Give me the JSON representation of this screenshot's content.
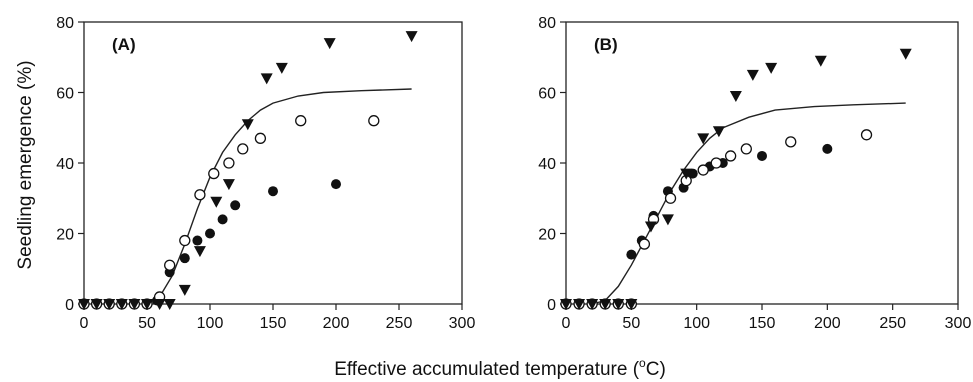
{
  "chart_data": [
    {
      "type": "scatter",
      "panel_label": "(A)",
      "xlim": [
        0,
        300
      ],
      "ylim": [
        0,
        80
      ],
      "xticks": [
        0,
        50,
        100,
        150,
        200,
        250,
        300
      ],
      "yticks": [
        0,
        20,
        40,
        60,
        80
      ],
      "ylabel": "Seedling emergence (%)",
      "grid": false,
      "legend": "none",
      "series": [
        {
          "marker": "filled-circle",
          "points": [
            [
              0,
              0
            ],
            [
              10,
              0
            ],
            [
              20,
              0
            ],
            [
              30,
              0
            ],
            [
              40,
              0
            ],
            [
              50,
              0
            ],
            [
              58,
              1
            ],
            [
              68,
              9
            ],
            [
              80,
              13
            ],
            [
              90,
              18
            ],
            [
              100,
              20
            ],
            [
              110,
              24
            ],
            [
              120,
              28
            ],
            [
              150,
              32
            ],
            [
              200,
              34
            ]
          ]
        },
        {
          "marker": "open-circle",
          "points": [
            [
              0,
              0
            ],
            [
              10,
              0
            ],
            [
              20,
              0
            ],
            [
              30,
              0
            ],
            [
              40,
              0
            ],
            [
              50,
              0
            ],
            [
              60,
              2
            ],
            [
              68,
              11
            ],
            [
              80,
              18
            ],
            [
              92,
              31
            ],
            [
              103,
              37
            ],
            [
              115,
              40
            ],
            [
              126,
              44
            ],
            [
              140,
              47
            ],
            [
              172,
              52
            ],
            [
              230,
              52
            ]
          ]
        },
        {
          "marker": "filled-triangle-down",
          "points": [
            [
              0,
              0
            ],
            [
              10,
              0
            ],
            [
              20,
              0
            ],
            [
              30,
              0
            ],
            [
              40,
              0
            ],
            [
              50,
              0
            ],
            [
              60,
              0
            ],
            [
              68,
              0
            ],
            [
              80,
              4
            ],
            [
              92,
              15
            ],
            [
              105,
              29
            ],
            [
              115,
              34
            ],
            [
              130,
              51
            ],
            [
              145,
              64
            ],
            [
              157,
              67
            ],
            [
              195,
              74
            ],
            [
              260,
              76
            ]
          ]
        }
      ],
      "fitted_curve": [
        [
          50,
          0
        ],
        [
          60,
          2
        ],
        [
          70,
          8
        ],
        [
          80,
          17
        ],
        [
          90,
          27
        ],
        [
          100,
          36
        ],
        [
          110,
          43
        ],
        [
          120,
          48
        ],
        [
          130,
          52
        ],
        [
          140,
          55
        ],
        [
          150,
          57
        ],
        [
          170,
          59
        ],
        [
          190,
          60
        ],
        [
          220,
          60.5
        ],
        [
          260,
          61
        ]
      ]
    },
    {
      "type": "scatter",
      "panel_label": "(B)",
      "xlim": [
        0,
        300
      ],
      "ylim": [
        0,
        80
      ],
      "xticks": [
        0,
        50,
        100,
        150,
        200,
        250,
        300
      ],
      "yticks": [
        0,
        20,
        40,
        60,
        80
      ],
      "grid": false,
      "legend": "none",
      "series": [
        {
          "marker": "filled-circle",
          "points": [
            [
              0,
              0
            ],
            [
              10,
              0
            ],
            [
              20,
              0
            ],
            [
              30,
              0
            ],
            [
              40,
              0
            ],
            [
              50,
              14
            ],
            [
              58,
              18
            ],
            [
              67,
              25
            ],
            [
              78,
              32
            ],
            [
              90,
              33
            ],
            [
              97,
              37
            ],
            [
              110,
              39
            ],
            [
              120,
              40
            ],
            [
              150,
              42
            ],
            [
              200,
              44
            ]
          ]
        },
        {
          "marker": "open-circle",
          "points": [
            [
              0,
              0
            ],
            [
              10,
              0
            ],
            [
              20,
              0
            ],
            [
              30,
              0
            ],
            [
              40,
              0
            ],
            [
              50,
              0
            ],
            [
              60,
              17
            ],
            [
              67,
              24
            ],
            [
              80,
              30
            ],
            [
              92,
              35
            ],
            [
              105,
              38
            ],
            [
              115,
              40
            ],
            [
              126,
              42
            ],
            [
              138,
              44
            ],
            [
              172,
              46
            ],
            [
              230,
              48
            ]
          ]
        },
        {
          "marker": "filled-triangle-down",
          "points": [
            [
              0,
              0
            ],
            [
              10,
              0
            ],
            [
              20,
              0
            ],
            [
              30,
              0
            ],
            [
              40,
              0
            ],
            [
              50,
              0
            ],
            [
              65,
              22
            ],
            [
              78,
              24
            ],
            [
              92,
              37
            ],
            [
              105,
              47
            ],
            [
              117,
              49
            ],
            [
              130,
              59
            ],
            [
              143,
              65
            ],
            [
              157,
              67
            ],
            [
              195,
              69
            ],
            [
              260,
              71
            ]
          ]
        }
      ],
      "fitted_curve": [
        [
          20,
          0
        ],
        [
          30,
          1
        ],
        [
          40,
          5
        ],
        [
          50,
          11
        ],
        [
          60,
          18
        ],
        [
          70,
          25
        ],
        [
          80,
          32
        ],
        [
          90,
          38
        ],
        [
          100,
          43
        ],
        [
          110,
          47
        ],
        [
          120,
          50
        ],
        [
          140,
          53
        ],
        [
          160,
          55
        ],
        [
          190,
          56
        ],
        [
          220,
          56.5
        ],
        [
          260,
          57
        ]
      ]
    }
  ],
  "shared_xlabel": "Effective accumulated temperature (",
  "shared_xlabel_superscript": "o",
  "shared_xlabel_suffix": "C)"
}
